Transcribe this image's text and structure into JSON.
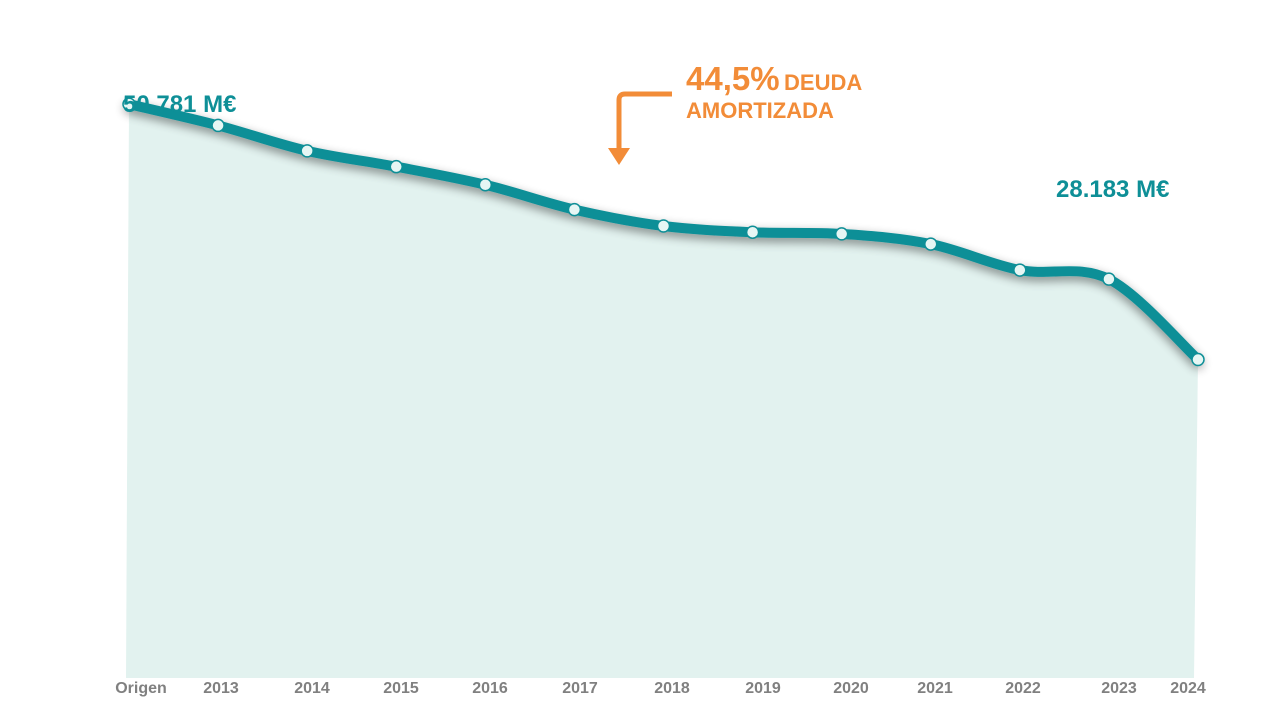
{
  "chart_data": {
    "type": "area",
    "categories": [
      "Origen",
      "2013",
      "2014",
      "2015",
      "2016",
      "2017",
      "2018",
      "2019",
      "2020",
      "2021",
      "2022",
      "2023",
      "2024"
    ],
    "values": [
      50781,
      48900,
      46650,
      45250,
      43650,
      41450,
      40000,
      39450,
      39300,
      38400,
      36100,
      35300,
      28183
    ],
    "ylim": [
      0,
      60000
    ],
    "grid": false,
    "legend": "none",
    "labels": {
      "start": "50.781 M€",
      "end": "28.183 M€"
    },
    "annotation": {
      "percent": "44,5%",
      "text_line1": "DEUDA",
      "text_line2": "AMORTIZADA"
    }
  },
  "colors": {
    "line": "#0e8f97",
    "area": "#e2f2ef",
    "marker_fill": "#e6f6f4",
    "annotation": "#f28c38",
    "tick": "#808080"
  }
}
